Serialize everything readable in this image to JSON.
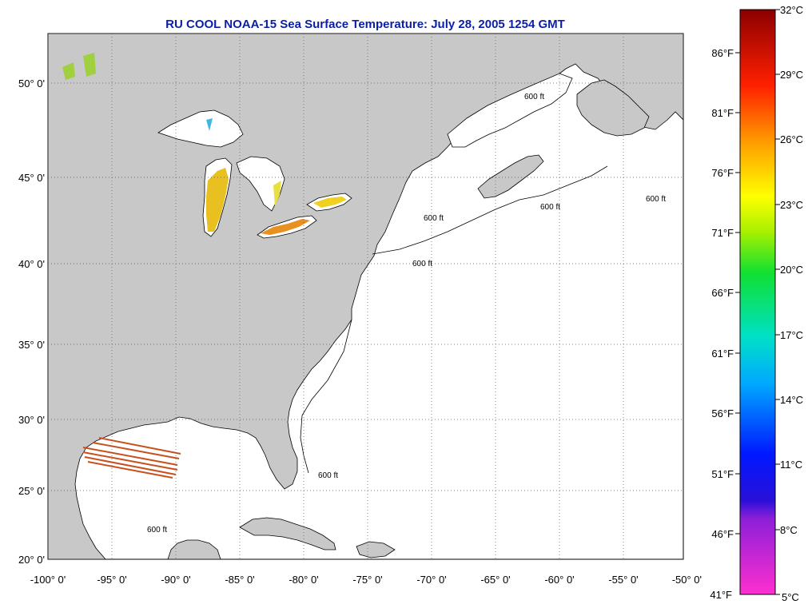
{
  "title": "RU COOL  NOAA-15  Sea Surface Temperature:  July 28, 2005 1254 GMT",
  "map": {
    "lat_labels": [
      "50° 0'",
      "45° 0'",
      "40° 0'",
      "35° 0'",
      "30° 0'",
      "25° 0'",
      "20° 0'"
    ],
    "lon_labels": [
      "-100° 0'",
      "-95° 0'",
      "-90° 0'",
      "-85° 0'",
      "-80° 0'",
      "-75° 0'",
      "-70° 0'",
      "-65° 0'",
      "-60° 0'",
      "-55° 0'",
      "-50° 0'"
    ],
    "contour_label": "600 ft",
    "land_color": "#c8c8c8",
    "ocean_color": "#ffffff"
  },
  "colorbar": {
    "celsius_labels": [
      "32°C",
      "29°C",
      "26°C",
      "23°C",
      "20°C",
      "17°C",
      "14°C",
      "11°C",
      "8°C",
      "5°C"
    ],
    "fahrenheit_labels": [
      "86°F",
      "81°F",
      "76°F",
      "71°F",
      "66°F",
      "61°F",
      "56°F",
      "51°F",
      "46°F",
      "41°F"
    ]
  }
}
